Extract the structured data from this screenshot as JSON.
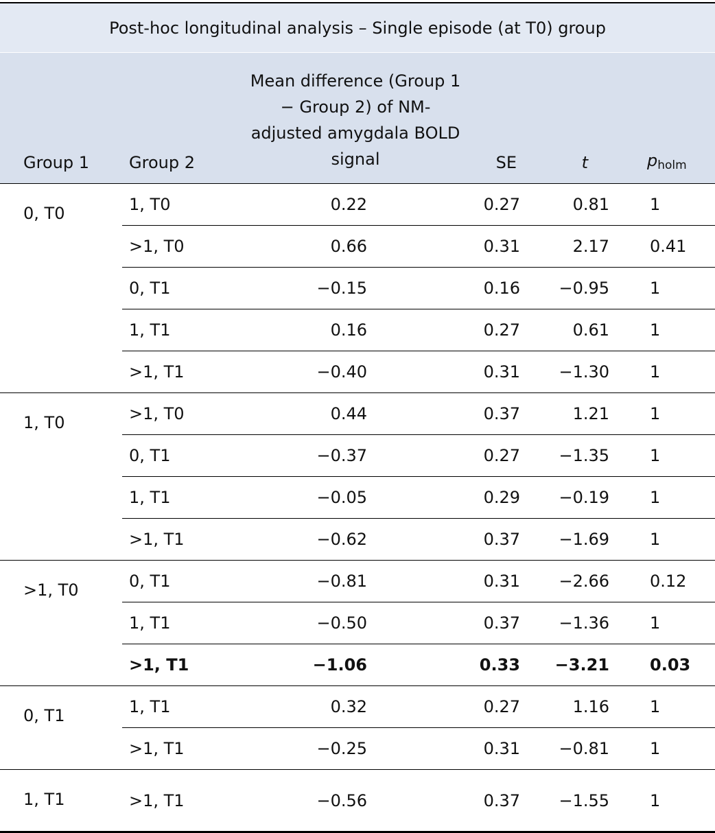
{
  "title": "Post-hoc longitudinal analysis – Single episode (at T0) group",
  "columns": {
    "group1": "Group 1",
    "group2": "Group 2",
    "mean": "Mean difference (Group 1 − Group 2) of NM-adjusted amygdala BOLD signal",
    "se": "SE",
    "t": "t",
    "p": {
      "symbol": "p",
      "subscript": "holm"
    }
  },
  "groups": [
    {
      "group1": "0, T0",
      "rows": [
        {
          "cells": [
            "1, T0",
            "0.22",
            "0.27",
            "0.81",
            "1"
          ]
        },
        {
          "cells": [
            ">1, T0",
            "0.66",
            "0.31",
            "2.17",
            "0.41"
          ]
        },
        {
          "cells": [
            "0, T1",
            "−0.15",
            "0.16",
            "−0.95",
            "1"
          ]
        },
        {
          "cells": [
            "1, T1",
            "0.16",
            "0.27",
            "0.61",
            "1"
          ]
        },
        {
          "cells": [
            ">1, T1",
            "−0.40",
            "0.31",
            "−1.30",
            "1"
          ]
        }
      ]
    },
    {
      "group1": "1, T0",
      "rows": [
        {
          "cells": [
            ">1, T0",
            "0.44",
            "0.37",
            "1.21",
            "1"
          ]
        },
        {
          "cells": [
            "0, T1",
            "−0.37",
            "0.27",
            "−1.35",
            "1"
          ]
        },
        {
          "cells": [
            "1, T1",
            "−0.05",
            "0.29",
            "−0.19",
            "1"
          ]
        },
        {
          "cells": [
            ">1, T1",
            "−0.62",
            "0.37",
            "−1.69",
            "1"
          ]
        }
      ]
    },
    {
      "group1": ">1, T0",
      "rows": [
        {
          "cells": [
            "0, T1",
            "−0.81",
            "0.31",
            "−2.66",
            "0.12"
          ]
        },
        {
          "cells": [
            "1, T1",
            "−0.50",
            "0.37",
            "−1.36",
            "1"
          ]
        },
        {
          "cells": [
            ">1, T1",
            "−1.06",
            "0.33",
            "−3.21",
            "0.03"
          ],
          "bold": true
        }
      ]
    },
    {
      "group1": "0, T1",
      "rows": [
        {
          "cells": [
            "1, T1",
            "0.32",
            "0.27",
            "1.16",
            "1"
          ]
        },
        {
          "cells": [
            ">1, T1",
            "−0.25",
            "0.31",
            "−0.81",
            "1"
          ]
        }
      ]
    },
    {
      "group1": "1, T1",
      "rows": [
        {
          "cells": [
            ">1, T1",
            "−0.56",
            "0.37",
            "−1.55",
            "1"
          ]
        }
      ]
    }
  ]
}
